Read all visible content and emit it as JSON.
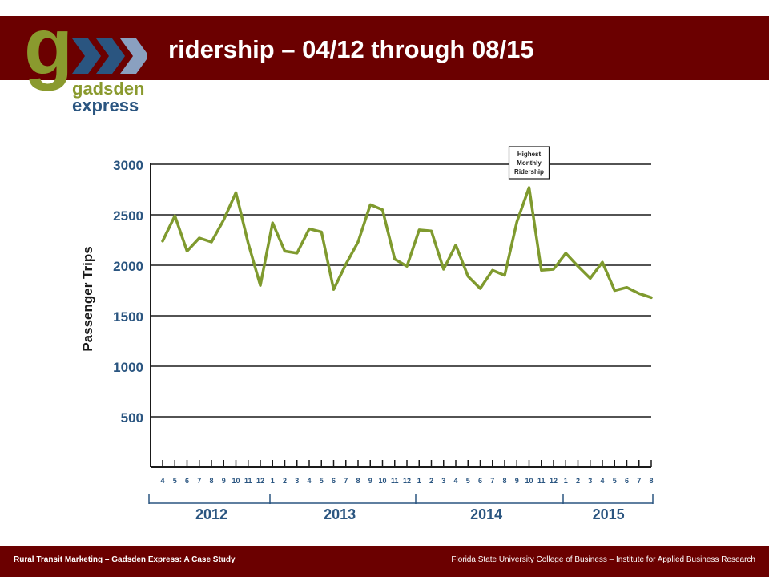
{
  "slide": {
    "title": "ridership – 04/12 through 08/15",
    "footer_left": "Rural Transit Marketing – Gadsden Express: A Case Study",
    "footer_right": "Florida State University College of Business – Institute for Applied Business Research"
  },
  "logo": {
    "letter": "g",
    "line1": "gadsden",
    "line2": "express"
  },
  "colors": {
    "header": "#6b0000",
    "series": "#7f9a2e",
    "axis_text": "#2a5580",
    "logo_green": "#8a9a2e",
    "logo_blue": "#2a5580"
  },
  "chart_data": {
    "type": "line",
    "ylabel": "Passenger Trips",
    "ylim": [
      0,
      3000
    ],
    "yticks": [
      500,
      1000,
      1500,
      2000,
      2500,
      3000
    ],
    "grid": true,
    "x": [
      "4",
      "5",
      "6",
      "7",
      "8",
      "9",
      "10",
      "11",
      "12",
      "1",
      "2",
      "3",
      "4",
      "5",
      "6",
      "7",
      "8",
      "9",
      "10",
      "11",
      "12",
      "1",
      "2",
      "3",
      "4",
      "5",
      "6",
      "7",
      "8",
      "9",
      "10",
      "11",
      "12",
      "1",
      "2",
      "3",
      "4",
      "5",
      "6",
      "7",
      "8"
    ],
    "year_groups": [
      {
        "label": "2012",
        "start": 0,
        "end": 8
      },
      {
        "label": "2013",
        "start": 9,
        "end": 20
      },
      {
        "label": "2014",
        "start": 21,
        "end": 32
      },
      {
        "label": "2015",
        "start": 33,
        "end": 40
      }
    ],
    "series": [
      {
        "values": [
          2240,
          2490,
          2140,
          2270,
          2230,
          2450,
          2720,
          2220,
          1800,
          2420,
          2140,
          2120,
          2360,
          2330,
          1760,
          2010,
          2230,
          2600,
          2550,
          2060,
          1990,
          2350,
          2340,
          1960,
          2200,
          1890,
          1770,
          1950,
          1900,
          2430,
          2770,
          1950,
          1960,
          2120,
          1990,
          1870,
          2030,
          1750,
          1780,
          1720,
          1680
        ]
      }
    ],
    "annotation": {
      "text": "Highest Monthly Ridership",
      "index": 30
    }
  }
}
